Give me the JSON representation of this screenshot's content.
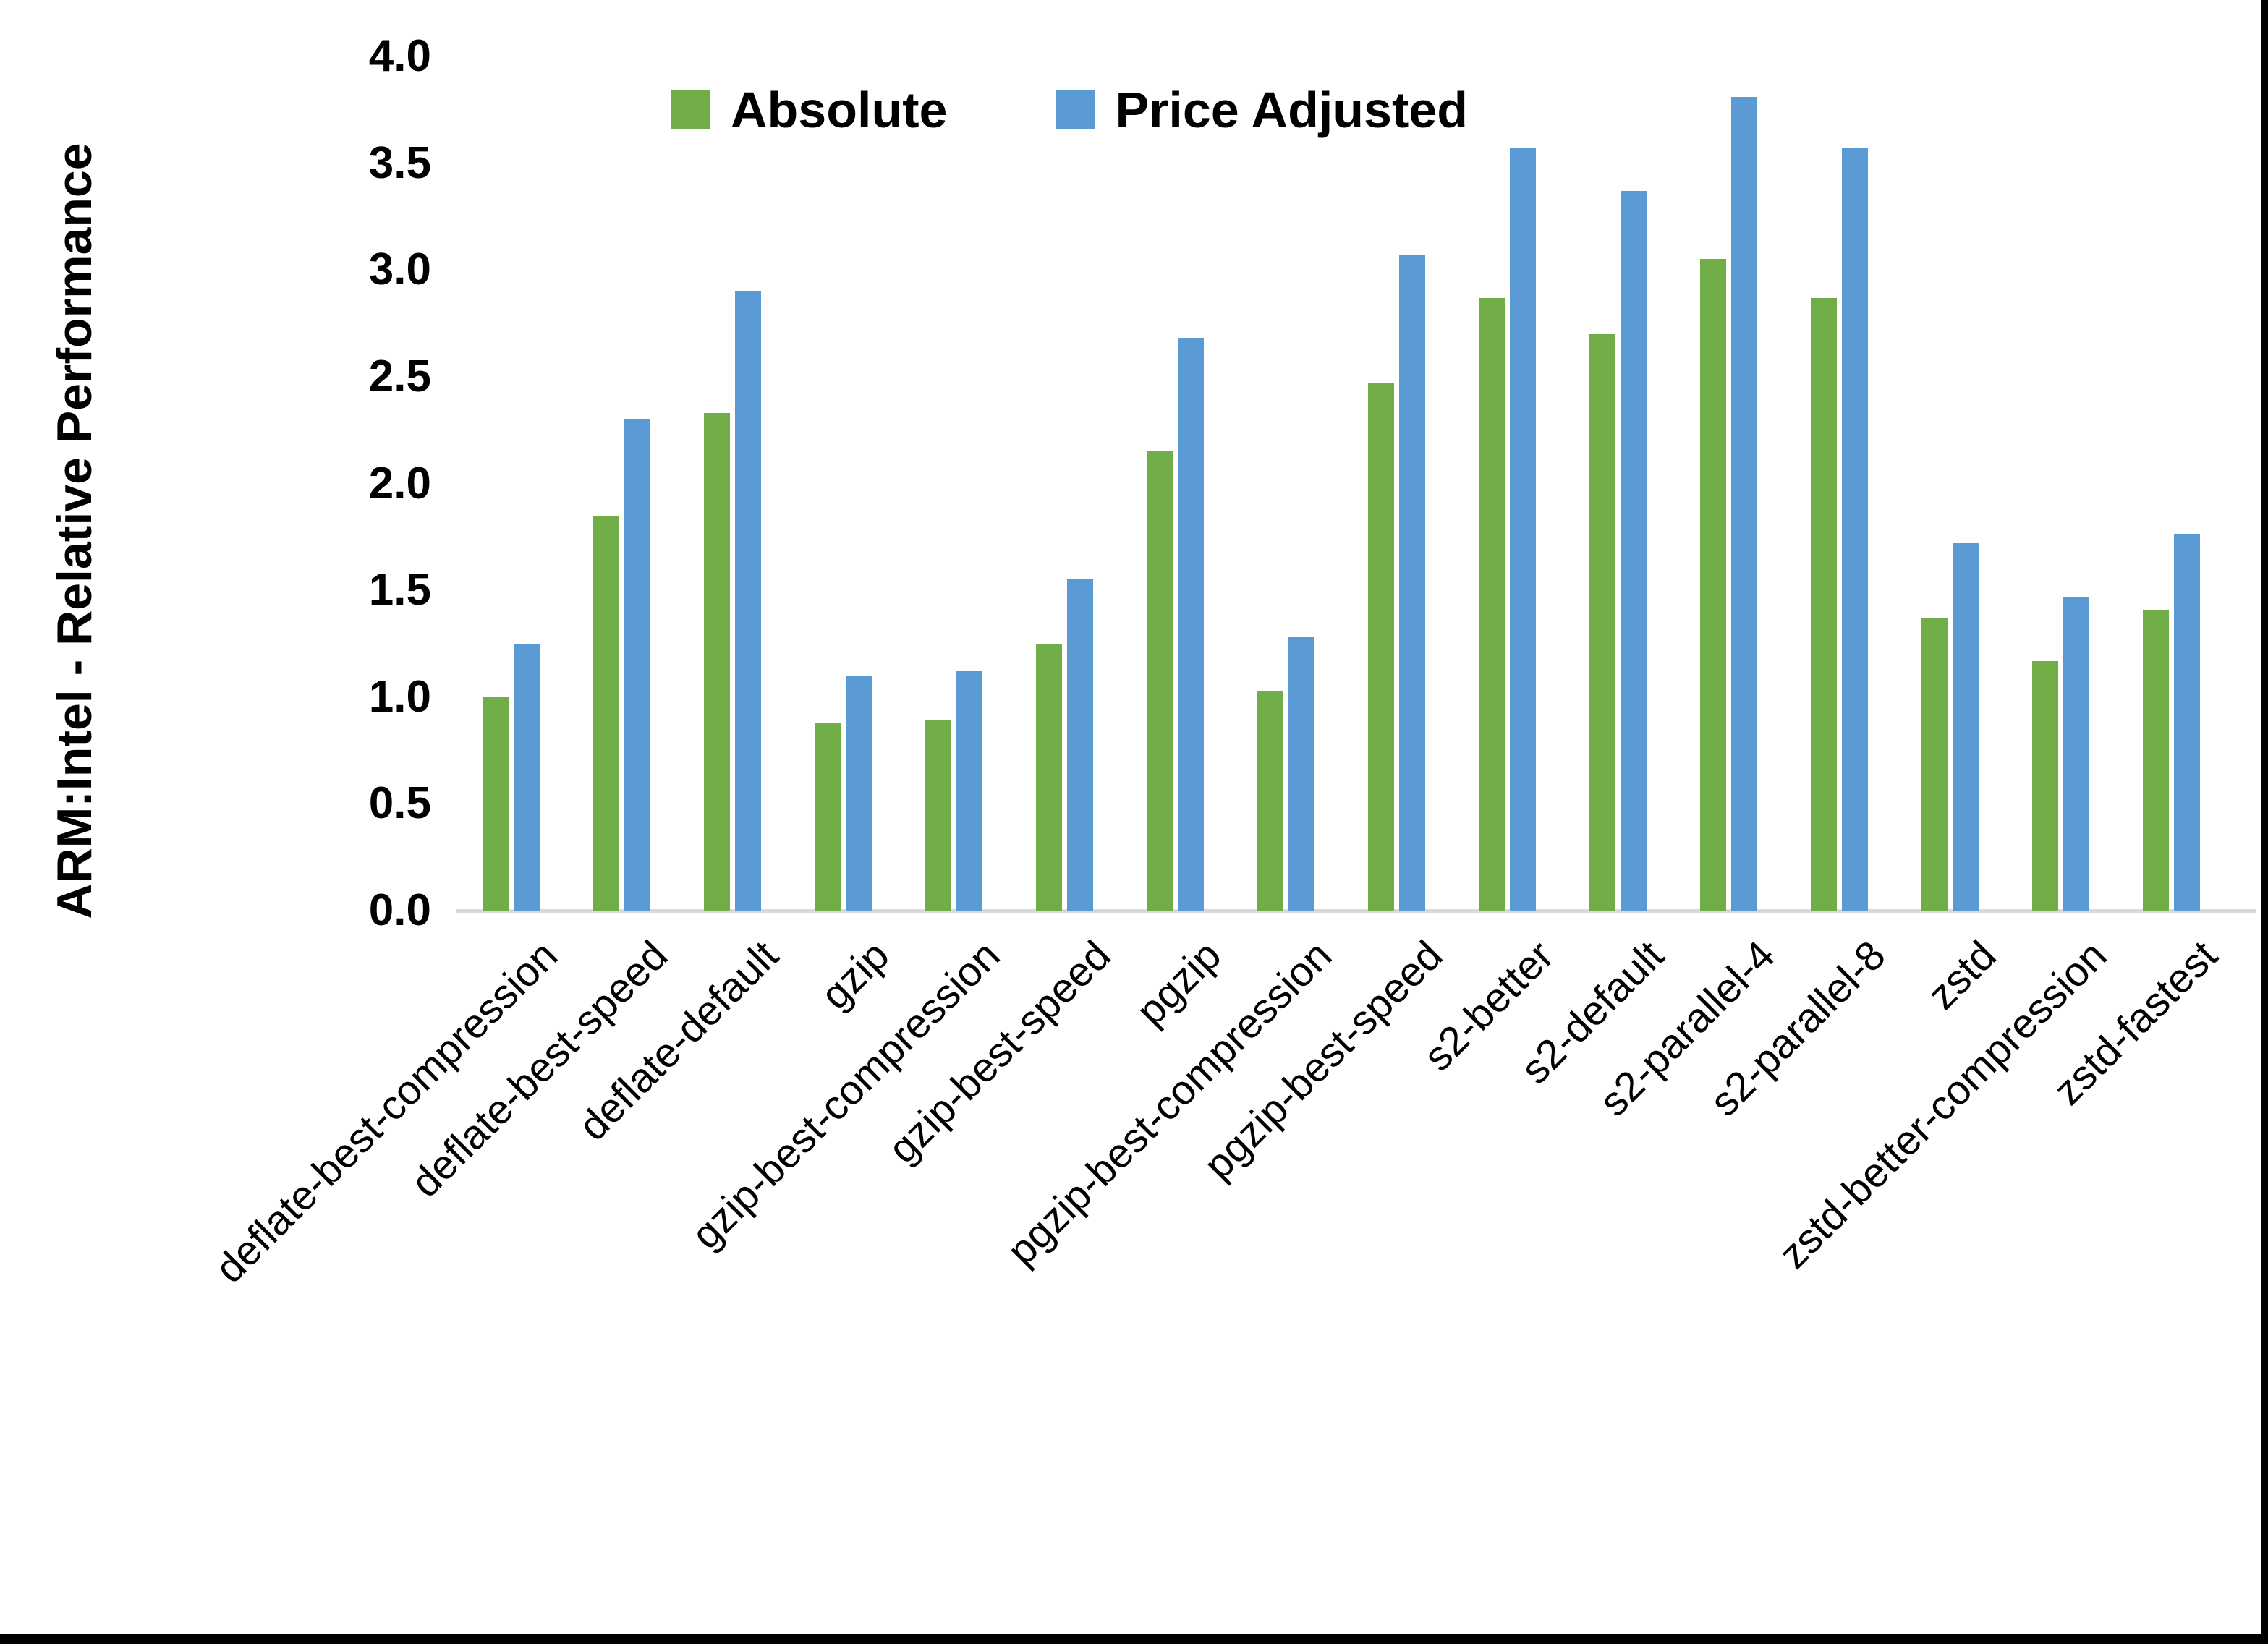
{
  "chart_data": {
    "type": "bar",
    "title": "",
    "ylabel": "ARM:Intel - Relative Performance",
    "xlabel": "",
    "ylim": [
      0.0,
      4.0
    ],
    "ytick_step": 0.5,
    "yticks": [
      "0.0",
      "0.5",
      "1.0",
      "1.5",
      "2.0",
      "2.5",
      "3.0",
      "3.5",
      "4.0"
    ],
    "grid": false,
    "legend_position": "top-center",
    "axis_line_color": "#d9d9d9",
    "categories": [
      "deflate-best-compression",
      "deflate-best-speed",
      "deflate-default",
      "gzip",
      "gzip-best-compression",
      "gzip-best-speed",
      "pgzip",
      "pgzip-best-compression",
      "pgzip-best-speed",
      "s2-better",
      "s2-default",
      "s2-parallel-4",
      "s2-parallel-8",
      "zstd",
      "zstd-better-compression",
      "zstd-fastest"
    ],
    "series": [
      {
        "name": "Absolute",
        "color": "#70AD47",
        "values": [
          1.0,
          1.85,
          2.33,
          0.88,
          0.89,
          1.25,
          2.15,
          1.03,
          2.47,
          2.87,
          2.7,
          3.05,
          2.87,
          1.37,
          1.17,
          1.41
        ]
      },
      {
        "name": "Price Adjusted",
        "color": "#5B9BD5",
        "values": [
          1.25,
          2.3,
          2.9,
          1.1,
          1.12,
          1.55,
          2.68,
          1.28,
          3.07,
          3.57,
          3.37,
          3.81,
          3.57,
          1.72,
          1.47,
          1.76
        ]
      }
    ]
  }
}
